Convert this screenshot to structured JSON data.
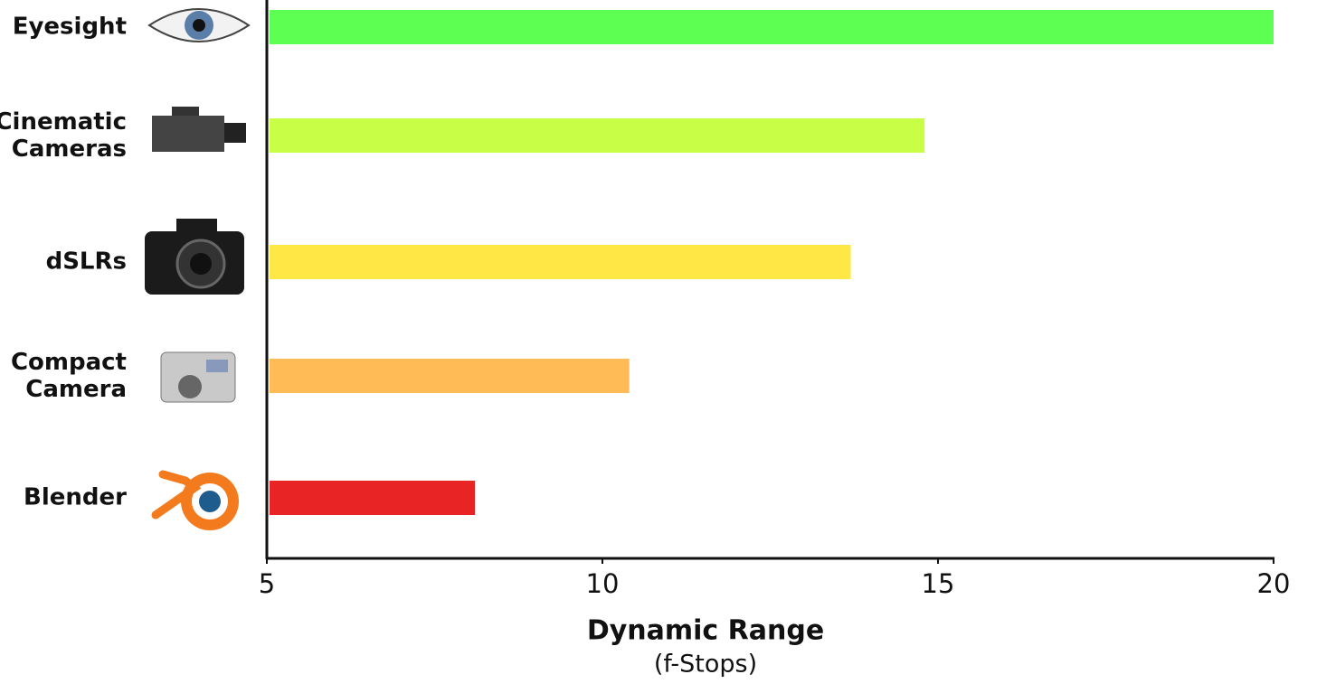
{
  "chart_data": {
    "type": "barh",
    "categories": [
      "Eyesight",
      "Cinematic\nCameras",
      "dSLRs",
      "Compact\nCamera",
      "Blender"
    ],
    "values": [
      20,
      14.8,
      13.7,
      10.4,
      8.1
    ],
    "colors": [
      "#5cff52",
      "#c8ff46",
      "#ffe845",
      "#ffbb55",
      "#e82424"
    ],
    "xlabel": "Dynamic Range",
    "xlabel_sub": "(f-Stops)",
    "xlim": [
      5,
      20
    ],
    "xticks": [
      5,
      10,
      15,
      20
    ],
    "grid": false
  }
}
